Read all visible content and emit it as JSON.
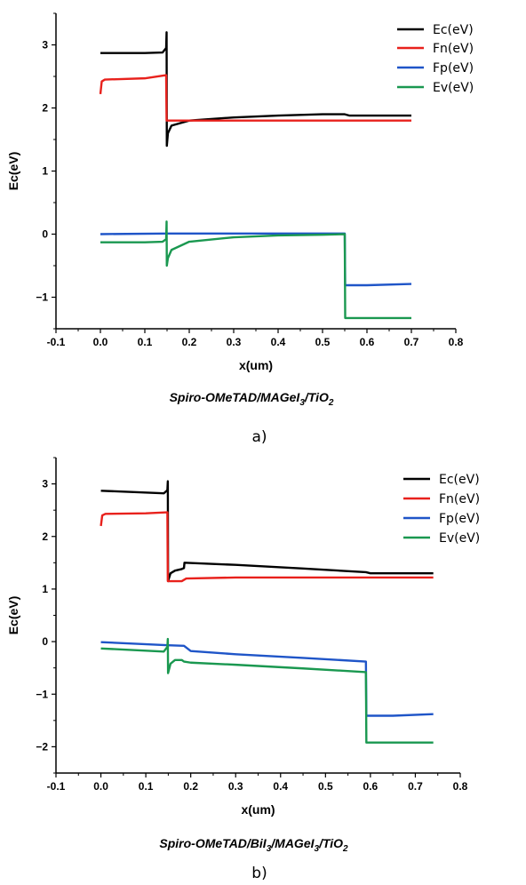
{
  "chart_data": [
    {
      "type": "line",
      "panel_label": "a)",
      "caption": {
        "parts": [
          {
            "t": "Spiro-OMeTAD/MAGeI"
          },
          {
            "t": "3",
            "sub": true
          },
          {
            "t": "/TiO"
          },
          {
            "t": "2",
            "sub": true
          }
        ]
      },
      "xlabel": "x(um)",
      "ylabel": "Ec(eV)",
      "xlim": [
        -0.1,
        0.8
      ],
      "ylim": [
        -1.5,
        3.5
      ],
      "xticks": [
        -0.1,
        0.0,
        0.1,
        0.2,
        0.3,
        0.4,
        0.5,
        0.6,
        0.7,
        0.8
      ],
      "xtick_labels": [
        "-0.1",
        "0.0",
        "0.1",
        "0.2",
        "0.3",
        "0.4",
        "0.5",
        "0.6",
        "0.7",
        "0.8"
      ],
      "yticks": [
        -1,
        0,
        1,
        2,
        3
      ],
      "ytick_labels": [
        "−1",
        "0",
        "1",
        "2",
        "3"
      ],
      "legend_position": "top-right",
      "grid": false,
      "series": [
        {
          "name": "Ec(eV)",
          "color": "#000000",
          "points": [
            [
              0.0,
              2.87
            ],
            [
              0.1,
              2.87
            ],
            [
              0.14,
              2.88
            ],
            [
              0.148,
              2.95
            ],
            [
              0.149,
              3.2
            ],
            [
              0.1495,
              1.4
            ],
            [
              0.152,
              1.6
            ],
            [
              0.16,
              1.72
            ],
            [
              0.2,
              1.8
            ],
            [
              0.3,
              1.85
            ],
            [
              0.4,
              1.88
            ],
            [
              0.5,
              1.9
            ],
            [
              0.55,
              1.9
            ],
            [
              0.56,
              1.88
            ],
            [
              0.7,
              1.88
            ]
          ]
        },
        {
          "name": "Fn(eV)",
          "color": "#e8211c",
          "points": [
            [
              0.0,
              2.22
            ],
            [
              0.003,
              2.42
            ],
            [
              0.01,
              2.45
            ],
            [
              0.1,
              2.47
            ],
            [
              0.148,
              2.52
            ],
            [
              0.149,
              1.8
            ],
            [
              0.3,
              1.8
            ],
            [
              0.55,
              1.8
            ],
            [
              0.7,
              1.8
            ]
          ]
        },
        {
          "name": "Fp(eV)",
          "color": "#1f55c8",
          "points": [
            [
              0.0,
              0.0
            ],
            [
              0.15,
              0.01
            ],
            [
              0.3,
              0.01
            ],
            [
              0.55,
              0.01
            ],
            [
              0.551,
              -0.81
            ],
            [
              0.6,
              -0.81
            ],
            [
              0.7,
              -0.79
            ]
          ]
        },
        {
          "name": "Ev(eV)",
          "color": "#1a9850",
          "points": [
            [
              0.0,
              -0.13
            ],
            [
              0.1,
              -0.13
            ],
            [
              0.14,
              -0.12
            ],
            [
              0.148,
              -0.08
            ],
            [
              0.149,
              0.2
            ],
            [
              0.1495,
              -0.5
            ],
            [
              0.152,
              -0.38
            ],
            [
              0.16,
              -0.25
            ],
            [
              0.2,
              -0.12
            ],
            [
              0.3,
              -0.05
            ],
            [
              0.4,
              -0.02
            ],
            [
              0.5,
              -0.01
            ],
            [
              0.55,
              0.0
            ],
            [
              0.551,
              -1.33
            ],
            [
              0.7,
              -1.33
            ]
          ]
        }
      ]
    },
    {
      "type": "line",
      "panel_label": "b)",
      "caption": {
        "parts": [
          {
            "t": "Spiro-OMeTAD/BiI"
          },
          {
            "t": "3",
            "sub": true
          },
          {
            "t": "/MAGeI"
          },
          {
            "t": "3",
            "sub": true
          },
          {
            "t": "/TiO"
          },
          {
            "t": "2",
            "sub": true
          }
        ]
      },
      "xlabel": "x(um)",
      "ylabel": "Ec(eV)",
      "xlim": [
        -0.1,
        0.8
      ],
      "ylim": [
        -2.5,
        3.5
      ],
      "xticks": [
        -0.1,
        0.0,
        0.1,
        0.2,
        0.3,
        0.4,
        0.5,
        0.6,
        0.7,
        0.8
      ],
      "xtick_labels": [
        "-0.1",
        "0.0",
        "0.1",
        "0.2",
        "0.3",
        "0.4",
        "0.5",
        "0.6",
        "0.7",
        "0.8"
      ],
      "yticks": [
        -2,
        -1,
        0,
        1,
        2,
        3
      ],
      "ytick_labels": [
        "−2",
        "−1",
        "0",
        "1",
        "2",
        "3"
      ],
      "legend_position": "top-right",
      "grid": false,
      "series": [
        {
          "name": "Ec(eV)",
          "color": "#000000",
          "points": [
            [
              0.0,
              2.87
            ],
            [
              0.14,
              2.82
            ],
            [
              0.148,
              2.88
            ],
            [
              0.149,
              3.05
            ],
            [
              0.1495,
              1.15
            ],
            [
              0.155,
              1.3
            ],
            [
              0.165,
              1.35
            ],
            [
              0.18,
              1.38
            ],
            [
              0.185,
              1.4
            ],
            [
              0.186,
              1.5
            ],
            [
              0.3,
              1.46
            ],
            [
              0.45,
              1.39
            ],
            [
              0.59,
              1.32
            ],
            [
              0.6,
              1.3
            ],
            [
              0.74,
              1.3
            ]
          ]
        },
        {
          "name": "Fn(eV)",
          "color": "#e8211c",
          "points": [
            [
              0.0,
              2.2
            ],
            [
              0.003,
              2.4
            ],
            [
              0.01,
              2.43
            ],
            [
              0.1,
              2.44
            ],
            [
              0.148,
              2.46
            ],
            [
              0.149,
              1.15
            ],
            [
              0.18,
              1.15
            ],
            [
              0.19,
              1.2
            ],
            [
              0.3,
              1.22
            ],
            [
              0.59,
              1.22
            ],
            [
              0.74,
              1.22
            ]
          ]
        },
        {
          "name": "Fp(eV)",
          "color": "#1f55c8",
          "points": [
            [
              0.0,
              -0.01
            ],
            [
              0.15,
              -0.07
            ],
            [
              0.185,
              -0.08
            ],
            [
              0.2,
              -0.18
            ],
            [
              0.3,
              -0.24
            ],
            [
              0.45,
              -0.31
            ],
            [
              0.59,
              -0.38
            ],
            [
              0.591,
              -1.41
            ],
            [
              0.65,
              -1.41
            ],
            [
              0.74,
              -1.38
            ]
          ]
        },
        {
          "name": "Ev(eV)",
          "color": "#1a9850",
          "points": [
            [
              0.0,
              -0.13
            ],
            [
              0.14,
              -0.19
            ],
            [
              0.148,
              -0.1
            ],
            [
              0.149,
              0.05
            ],
            [
              0.1495,
              -0.6
            ],
            [
              0.155,
              -0.42
            ],
            [
              0.165,
              -0.35
            ],
            [
              0.18,
              -0.35
            ],
            [
              0.185,
              -0.38
            ],
            [
              0.2,
              -0.4
            ],
            [
              0.3,
              -0.44
            ],
            [
              0.45,
              -0.51
            ],
            [
              0.59,
              -0.58
            ],
            [
              0.591,
              -1.92
            ],
            [
              0.74,
              -1.92
            ]
          ]
        }
      ]
    }
  ]
}
